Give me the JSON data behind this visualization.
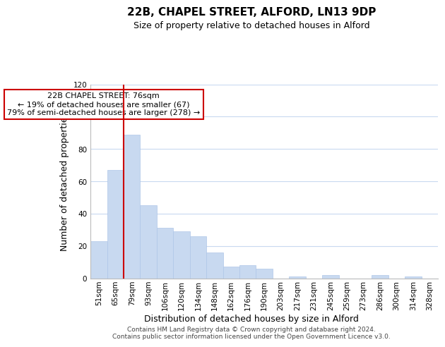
{
  "title": "22B, CHAPEL STREET, ALFORD, LN13 9DP",
  "subtitle": "Size of property relative to detached houses in Alford",
  "xlabel": "Distribution of detached houses by size in Alford",
  "ylabel": "Number of detached properties",
  "categories": [
    "51sqm",
    "65sqm",
    "79sqm",
    "93sqm",
    "106sqm",
    "120sqm",
    "134sqm",
    "148sqm",
    "162sqm",
    "176sqm",
    "190sqm",
    "203sqm",
    "217sqm",
    "231sqm",
    "245sqm",
    "259sqm",
    "273sqm",
    "286sqm",
    "300sqm",
    "314sqm",
    "328sqm"
  ],
  "values": [
    23,
    67,
    89,
    45,
    31,
    29,
    26,
    16,
    7,
    8,
    6,
    0,
    1,
    0,
    2,
    0,
    0,
    2,
    0,
    1,
    0
  ],
  "bar_color": "#c8d9f0",
  "bar_edge_color": "#aec6e8",
  "highlight_color": "#cc0000",
  "ylim": [
    0,
    120
  ],
  "yticks": [
    0,
    20,
    40,
    60,
    80,
    100,
    120
  ],
  "annotation_title": "22B CHAPEL STREET: 76sqm",
  "annotation_line1": "← 19% of detached houses are smaller (67)",
  "annotation_line2": "79% of semi-detached houses are larger (278) →",
  "annotation_box_color": "#ffffff",
  "annotation_box_edge": "#cc0000",
  "footer_line1": "Contains HM Land Registry data © Crown copyright and database right 2024.",
  "footer_line2": "Contains public sector information licensed under the Open Government Licence v3.0.",
  "background_color": "#ffffff",
  "grid_color": "#c8d9f0",
  "title_fontsize": 11,
  "subtitle_fontsize": 9,
  "axis_label_fontsize": 9,
  "tick_fontsize": 7.5,
  "annotation_fontsize": 8,
  "footer_fontsize": 6.5
}
